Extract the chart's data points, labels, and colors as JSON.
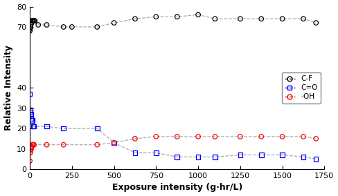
{
  "CF_x": [
    0,
    2,
    4,
    6,
    8,
    10,
    12,
    15,
    20,
    25,
    30,
    50,
    100,
    200,
    250,
    400,
    500,
    625,
    750,
    875,
    1000,
    1100,
    1250,
    1375,
    1500,
    1625,
    1700
  ],
  "CF_y": [
    68,
    69,
    70,
    71,
    72,
    72,
    73,
    73,
    73,
    73,
    73,
    71,
    71,
    70,
    70,
    70,
    72,
    74,
    75,
    75,
    76,
    74,
    74,
    74,
    74,
    74,
    72
  ],
  "CO_x": [
    0,
    2,
    4,
    6,
    8,
    10,
    12,
    15,
    20,
    25,
    100,
    200,
    400,
    500,
    625,
    750,
    875,
    1000,
    1100,
    1250,
    1375,
    1500,
    1625,
    1700
  ],
  "CO_y": [
    37,
    29,
    28,
    27,
    25,
    24,
    24,
    24,
    21,
    21,
    21,
    20,
    20,
    13,
    8,
    8,
    6,
    6,
    6,
    7,
    7,
    7,
    6,
    5
  ],
  "OH_x": [
    0,
    2,
    4,
    6,
    8,
    10,
    12,
    15,
    20,
    25,
    100,
    200,
    400,
    500,
    625,
    750,
    875,
    1000,
    1100,
    1250,
    1375,
    1500,
    1625,
    1700
  ],
  "OH_y": [
    4,
    8,
    9,
    10,
    10,
    11,
    11,
    12,
    12,
    12,
    12,
    12,
    12,
    13,
    15,
    16,
    16,
    16,
    16,
    16,
    16,
    16,
    16,
    15
  ],
  "xlabel": "Exposure intensity (g·hr/L)",
  "ylabel": "Relative Intensity",
  "xlim": [
    0,
    1750
  ],
  "ylim": [
    0,
    80
  ],
  "xticks": [
    0,
    250,
    500,
    750,
    1000,
    1250,
    1500,
    1750
  ],
  "yticks": [
    0,
    10,
    20,
    30,
    40,
    70,
    80
  ],
  "ytick_labels": [
    "0",
    "10",
    "20",
    "30",
    "40",
    "70",
    "80"
  ],
  "CF_color": "#000000",
  "CO_color": "#0000ff",
  "OH_color": "#ff0000",
  "line_color": "#aaaaaa",
  "legend_labels": [
    "C-F",
    "C=O",
    "-OH"
  ]
}
